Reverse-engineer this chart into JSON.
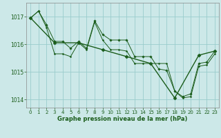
{
  "background_color": "#cce8e8",
  "plot_bg_color": "#cce8e8",
  "grid_color": "#99cccc",
  "line_color": "#1a5c1a",
  "marker_color": "#1a5c1a",
  "xlabel": "Graphe pression niveau de la mer (hPa)",
  "ylim": [
    1013.7,
    1017.5
  ],
  "xlim": [
    -0.5,
    23.5
  ],
  "yticks": [
    1014,
    1015,
    1016,
    1017
  ],
  "xticks": [
    0,
    1,
    2,
    3,
    4,
    5,
    6,
    7,
    8,
    9,
    10,
    11,
    12,
    13,
    14,
    15,
    16,
    17,
    18,
    19,
    20,
    21,
    22,
    23
  ],
  "series": [
    {
      "x": [
        0,
        1,
        2,
        3,
        4,
        5,
        6,
        7,
        8,
        9,
        10,
        11,
        12,
        13,
        14,
        15,
        16,
        17,
        18,
        19,
        20,
        21,
        22,
        23
      ],
      "y": [
        1016.95,
        1017.2,
        1016.7,
        1016.1,
        1016.1,
        1015.85,
        1016.1,
        1015.85,
        1016.85,
        1016.35,
        1016.15,
        1016.15,
        1016.15,
        1015.55,
        1015.55,
        1015.55,
        1015.1,
        1015.05,
        1014.3,
        1014.1,
        1014.2,
        1015.3,
        1015.35,
        1015.75
      ]
    },
    {
      "x": [
        0,
        1,
        2,
        3,
        4,
        5,
        6,
        7,
        8,
        9,
        10,
        11,
        12,
        13,
        14,
        15,
        16,
        17,
        18,
        19,
        20,
        21,
        22,
        23
      ],
      "y": [
        1016.95,
        1017.2,
        1016.6,
        1015.65,
        1015.65,
        1015.55,
        1016.05,
        1015.8,
        1016.8,
        1016.15,
        1015.8,
        1015.8,
        1015.75,
        1015.3,
        1015.3,
        1015.3,
        1015.3,
        1015.3,
        1014.3,
        1014.05,
        1014.1,
        1015.2,
        1015.25,
        1015.65
      ]
    },
    {
      "x": [
        0,
        3,
        6,
        9,
        12,
        15,
        18,
        21,
        23
      ],
      "y": [
        1016.95,
        1016.05,
        1016.05,
        1015.8,
        1015.55,
        1015.3,
        1014.05,
        1015.6,
        1015.75
      ]
    }
  ]
}
